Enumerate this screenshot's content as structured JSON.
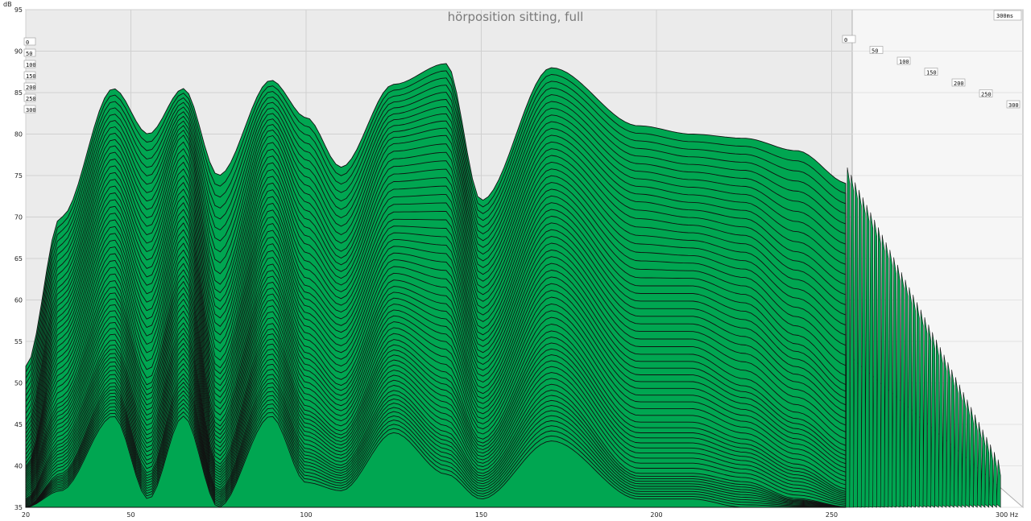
{
  "chart_data": {
    "type": "area",
    "title": "hörposition sitting, full",
    "y_unit_label": "dB",
    "x_unit_label": "Hz",
    "ylim": [
      35,
      95
    ],
    "xlim": [
      20,
      300
    ],
    "y_ticks": [
      "35",
      "40",
      "45",
      "50",
      "55",
      "60",
      "65",
      "70",
      "75",
      "80",
      "85",
      "90",
      "95"
    ],
    "x_ticks": [
      "20",
      "50",
      "100",
      "150",
      "200",
      "250",
      "300 Hz"
    ],
    "time_labels": [
      "0",
      "50",
      "100",
      "150",
      "200",
      "250",
      "300"
    ],
    "time_end_label": "300ms",
    "grid": true,
    "colors": {
      "fill": "#00a651",
      "stroke": "#111111",
      "background": "#ebebeb"
    },
    "series": [
      {
        "name": "0",
        "x": [
          20,
          30,
          45,
          55,
          65,
          75,
          90,
          100,
          110,
          125,
          140,
          150,
          170,
          195,
          210,
          225,
          240,
          255
        ],
        "values": [
          52,
          70,
          85.5,
          80,
          85.5,
          75,
          86.5,
          82,
          76,
          86,
          88.5,
          72,
          88,
          81,
          80,
          79.5,
          78,
          74
        ]
      },
      {
        "name": "50",
        "x": [
          20,
          30,
          45,
          55,
          65,
          75,
          90,
          100,
          110,
          125,
          140,
          150,
          170,
          195,
          210,
          225,
          240,
          255
        ],
        "values": [
          45,
          62,
          78,
          70,
          80,
          62,
          80,
          72,
          66,
          79,
          80,
          64,
          80,
          72,
          71,
          70,
          66,
          62
        ]
      },
      {
        "name": "100",
        "x": [
          20,
          30,
          45,
          55,
          65,
          75,
          90,
          100,
          110,
          125,
          140,
          150,
          170,
          195,
          210,
          225,
          240,
          255
        ],
        "values": [
          40,
          55,
          70,
          60,
          72,
          52,
          72,
          62,
          58,
          70,
          70,
          56,
          72,
          62,
          62,
          60,
          55,
          50
        ]
      },
      {
        "name": "150",
        "x": [
          20,
          30,
          45,
          55,
          65,
          75,
          90,
          100,
          110,
          125,
          140,
          150,
          170,
          195,
          210,
          225,
          240,
          255
        ],
        "values": [
          38,
          48,
          62,
          50,
          64,
          45,
          64,
          54,
          50,
          62,
          60,
          49,
          64,
          53,
          53,
          50,
          46,
          42
        ]
      },
      {
        "name": "200",
        "x": [
          20,
          30,
          45,
          55,
          65,
          75,
          90,
          100,
          110,
          125,
          140,
          150,
          170,
          195,
          210,
          225,
          240,
          255
        ],
        "values": [
          36,
          43,
          55,
          44,
          57,
          40,
          57,
          47,
          44,
          55,
          51,
          43,
          56,
          45,
          45,
          43,
          40,
          37
        ]
      },
      {
        "name": "250",
        "x": [
          20,
          30,
          45,
          55,
          65,
          75,
          90,
          100,
          110,
          125,
          140,
          150,
          170,
          195,
          210,
          225,
          240,
          255
        ],
        "values": [
          35,
          39,
          50,
          39,
          51,
          37,
          51,
          42,
          40,
          49,
          44,
          39,
          49,
          39,
          39,
          38,
          36,
          35
        ]
      },
      {
        "name": "300",
        "x": [
          20,
          30,
          45,
          55,
          65,
          75,
          90,
          100,
          110,
          125,
          140,
          150,
          170,
          195,
          210,
          225,
          240,
          255
        ],
        "values": [
          35,
          37,
          46,
          36,
          46,
          35,
          46,
          38,
          37,
          44,
          39,
          36,
          43,
          36,
          36,
          35,
          35,
          35
        ]
      }
    ]
  }
}
